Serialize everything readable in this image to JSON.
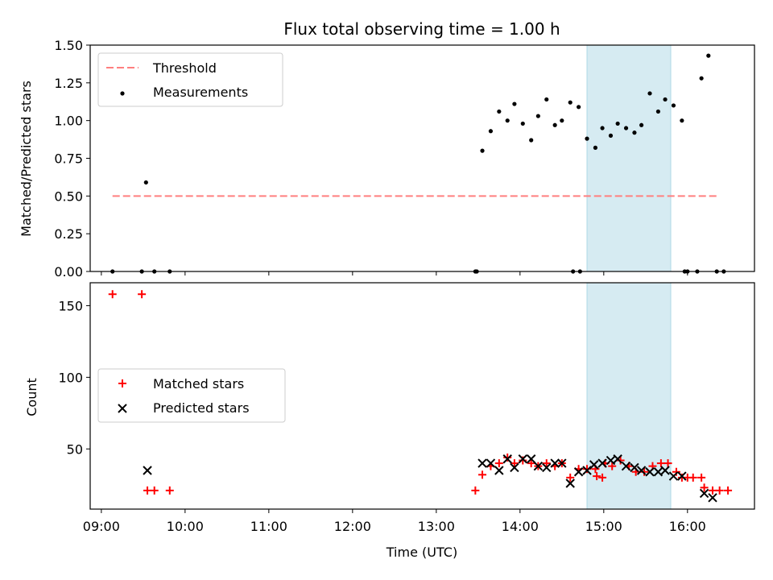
{
  "chart_data": {
    "type": "scatter",
    "title": "Flux total observing time = 1.00 h",
    "xlabel": "Time (UTC)",
    "x_ticks": [
      "09:00",
      "10:00",
      "11:00",
      "12:00",
      "13:00",
      "14:00",
      "15:00",
      "16:00"
    ],
    "x_range": [
      "08:52",
      "16:48"
    ],
    "highlight_span": [
      "14:48",
      "15:48"
    ],
    "highlight_color": "#add8e6",
    "top": {
      "ylabel": "Matched/Predicted stars",
      "ylim": [
        0,
        1.5
      ],
      "y_ticks": [
        "0.00",
        "0.25",
        "0.50",
        "0.75",
        "1.00",
        "1.25",
        "1.50"
      ],
      "legend_position": "upper left",
      "threshold": {
        "name": "Threshold",
        "value": 0.5,
        "x_start": "09:08",
        "x_end": "16:22",
        "color": "#ff7f7f"
      },
      "measurements": {
        "name": "Measurements",
        "color": "#000000",
        "points": [
          [
            "09:08",
            0.0
          ],
          [
            "09:29",
            0.0
          ],
          [
            "09:32",
            0.59
          ],
          [
            "09:38",
            0.0
          ],
          [
            "09:49",
            0.0
          ],
          [
            "13:28",
            0.0
          ],
          [
            "13:29",
            0.0
          ],
          [
            "13:33",
            0.8
          ],
          [
            "13:39",
            0.93
          ],
          [
            "13:45",
            1.06
          ],
          [
            "13:51",
            1.0
          ],
          [
            "13:56",
            1.11
          ],
          [
            "14:02",
            0.98
          ],
          [
            "14:08",
            0.87
          ],
          [
            "14:13",
            1.03
          ],
          [
            "14:19",
            1.14
          ],
          [
            "14:25",
            0.97
          ],
          [
            "14:30",
            1.0
          ],
          [
            "14:36",
            1.12
          ],
          [
            "14:42",
            1.09
          ],
          [
            "14:38",
            0.0
          ],
          [
            "14:43",
            0.0
          ],
          [
            "14:48",
            0.88
          ],
          [
            "14:54",
            0.82
          ],
          [
            "14:59",
            0.95
          ],
          [
            "15:05",
            0.9
          ],
          [
            "15:10",
            0.98
          ],
          [
            "15:16",
            0.95
          ],
          [
            "15:22",
            0.92
          ],
          [
            "15:27",
            0.97
          ],
          [
            "15:33",
            1.18
          ],
          [
            "15:39",
            1.06
          ],
          [
            "15:44",
            1.14
          ],
          [
            "15:50",
            1.1
          ],
          [
            "15:56",
            1.0
          ],
          [
            "15:58",
            0.0
          ],
          [
            "16:00",
            0.0
          ],
          [
            "16:07",
            0.0
          ],
          [
            "16:10",
            1.28
          ],
          [
            "16:15",
            1.43
          ],
          [
            "16:21",
            0.0
          ],
          [
            "16:26",
            0.0
          ]
        ]
      }
    },
    "bottom": {
      "ylabel": "Count",
      "ylim": [
        8,
        166
      ],
      "y_ticks": [
        "50",
        "100",
        "150"
      ],
      "legend_position": "center left",
      "series": [
        {
          "name": "Matched stars",
          "marker": "+",
          "color": "#ff0000",
          "points": [
            [
              "09:08",
              158
            ],
            [
              "09:29",
              158
            ],
            [
              "09:33",
              21
            ],
            [
              "09:38",
              21
            ],
            [
              "09:49",
              21
            ],
            [
              "13:28",
              21
            ],
            [
              "13:33",
              32
            ],
            [
              "13:39",
              38
            ],
            [
              "13:45",
              40
            ],
            [
              "13:51",
              44
            ],
            [
              "13:56",
              40
            ],
            [
              "14:02",
              42
            ],
            [
              "14:08",
              40
            ],
            [
              "14:13",
              38
            ],
            [
              "14:19",
              40
            ],
            [
              "14:25",
              38
            ],
            [
              "14:30",
              40
            ],
            [
              "14:36",
              30
            ],
            [
              "14:42",
              36
            ],
            [
              "14:48",
              36
            ],
            [
              "14:54",
              36
            ],
            [
              "14:59",
              30
            ],
            [
              "14:55",
              31
            ],
            [
              "15:01",
              40
            ],
            [
              "15:06",
              38
            ],
            [
              "15:12",
              42
            ],
            [
              "15:18",
              38
            ],
            [
              "15:23",
              34
            ],
            [
              "15:29",
              34
            ],
            [
              "15:35",
              38
            ],
            [
              "15:41",
              40
            ],
            [
              "15:46",
              40
            ],
            [
              "15:52",
              34
            ],
            [
              "15:56",
              30
            ],
            [
              "16:00",
              30
            ],
            [
              "16:04",
              30
            ],
            [
              "16:10",
              30
            ],
            [
              "16:12",
              23
            ],
            [
              "16:18",
              21
            ],
            [
              "16:23",
              21
            ],
            [
              "16:29",
              21
            ]
          ]
        },
        {
          "name": "Predicted stars",
          "marker": "x",
          "color": "#000000",
          "points": [
            [
              "09:33",
              35
            ],
            [
              "13:33",
              40
            ],
            [
              "13:39",
              40
            ],
            [
              "13:45",
              35
            ],
            [
              "13:51",
              43
            ],
            [
              "13:56",
              37
            ],
            [
              "14:02",
              43
            ],
            [
              "14:08",
              43
            ],
            [
              "14:13",
              38
            ],
            [
              "14:19",
              37
            ],
            [
              "14:25",
              40
            ],
            [
              "14:30",
              40
            ],
            [
              "14:36",
              26
            ],
            [
              "14:42",
              34
            ],
            [
              "14:48",
              35
            ],
            [
              "14:53",
              39
            ],
            [
              "14:59",
              40
            ],
            [
              "15:05",
              42
            ],
            [
              "15:10",
              43
            ],
            [
              "15:16",
              38
            ],
            [
              "15:22",
              37
            ],
            [
              "15:27",
              35
            ],
            [
              "15:33",
              34
            ],
            [
              "15:39",
              34
            ],
            [
              "15:44",
              35
            ],
            [
              "15:50",
              31
            ],
            [
              "15:56",
              31
            ],
            [
              "16:12",
              19
            ],
            [
              "16:18",
              16
            ]
          ]
        }
      ]
    }
  }
}
